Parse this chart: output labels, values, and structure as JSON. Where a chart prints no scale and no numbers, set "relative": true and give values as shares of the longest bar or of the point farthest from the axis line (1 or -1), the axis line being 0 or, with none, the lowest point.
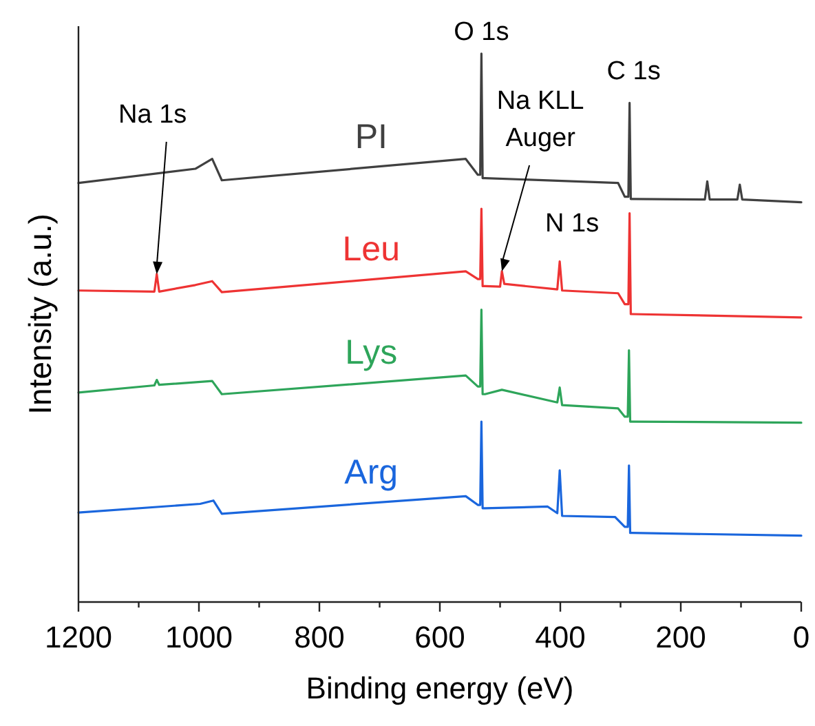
{
  "chart_data": {
    "type": "line",
    "relative": true,
    "xlabel": "Binding energy (eV)",
    "ylabel": "Intensity (a.u.)",
    "xlim": [
      1200,
      0
    ],
    "xticks": [
      1200,
      {
        "value": 1100,
        "label": null
      },
      1000,
      {
        "value": 900,
        "label": null
      },
      800,
      {
        "value": 700,
        "label": null
      },
      600,
      {
        "value": 500,
        "label": null
      },
      400,
      {
        "value": 300,
        "label": null
      },
      200,
      {
        "value": 100,
        "label": null
      },
      0
    ],
    "tick_labels": "x",
    "grid": false,
    "legend": false,
    "marker": "none",
    "line_style": "solid",
    "series": [
      {
        "name": "PI",
        "color": "#404040",
        "x": [
          1200,
          1006,
          978,
          962,
          557,
          537,
          533,
          531,
          529,
          525,
          304,
          293,
          287,
          285,
          283,
          281,
          160,
          156,
          152,
          106,
          102,
          98,
          0
        ],
        "values": [
          0.764,
          0.79,
          0.808,
          0.769,
          0.808,
          0.779,
          0.779,
          1.0,
          0.773,
          0.773,
          0.764,
          0.739,
          0.739,
          0.91,
          0.735,
          0.735,
          0.734,
          0.767,
          0.734,
          0.734,
          0.761,
          0.734,
          0.729
        ]
      },
      {
        "name": "Leu",
        "color": "#ee3333",
        "x": [
          1200,
          1074,
          1070,
          1066,
          1006,
          978,
          962,
          557,
          537,
          533,
          531,
          529,
          525,
          500,
          497,
          493,
          405,
          401,
          397,
          304,
          293,
          287,
          285,
          283,
          281,
          0
        ],
        "values": [
          0.568,
          0.566,
          0.598,
          0.566,
          0.578,
          0.585,
          0.565,
          0.603,
          0.589,
          0.589,
          0.717,
          0.576,
          0.576,
          0.575,
          0.603,
          0.58,
          0.57,
          0.621,
          0.568,
          0.563,
          0.543,
          0.543,
          0.709,
          0.525,
          0.525,
          0.519
        ]
      },
      {
        "name": "Lys",
        "color": "#2ea55a",
        "x": [
          1200,
          1074,
          1070,
          1066,
          978,
          962,
          557,
          537,
          533,
          531,
          529,
          525,
          497,
          405,
          401,
          397,
          304,
          293,
          288,
          286,
          284,
          281,
          0
        ],
        "values": [
          0.382,
          0.395,
          0.405,
          0.396,
          0.403,
          0.379,
          0.413,
          0.393,
          0.393,
          0.533,
          0.379,
          0.379,
          0.387,
          0.364,
          0.391,
          0.359,
          0.353,
          0.338,
          0.338,
          0.459,
          0.329,
          0.329,
          0.327
        ]
      },
      {
        "name": "Arg",
        "color": "#1a66dd",
        "x": [
          1200,
          998,
          976,
          962,
          557,
          537,
          533,
          531,
          529,
          525,
          421,
          405,
          401,
          397,
          309,
          293,
          288,
          286,
          284,
          281,
          0
        ],
        "values": [
          0.163,
          0.179,
          0.185,
          0.161,
          0.193,
          0.177,
          0.177,
          0.329,
          0.171,
          0.171,
          0.174,
          0.162,
          0.24,
          0.157,
          0.155,
          0.137,
          0.137,
          0.249,
          0.126,
          0.126,
          0.121
        ]
      }
    ],
    "annotations": [
      {
        "text": "Na 1s",
        "x": 1070,
        "y": 0.598
      },
      {
        "text": "O 1s",
        "x": 531,
        "y": 1.0
      },
      {
        "text": "Na KLL\nAuger",
        "x": 497,
        "y": 0.603
      },
      {
        "text": "C 1s",
        "x": 285,
        "y": 0.91
      },
      {
        "text": "N 1s",
        "x": 401,
        "y": 0.621
      }
    ]
  }
}
